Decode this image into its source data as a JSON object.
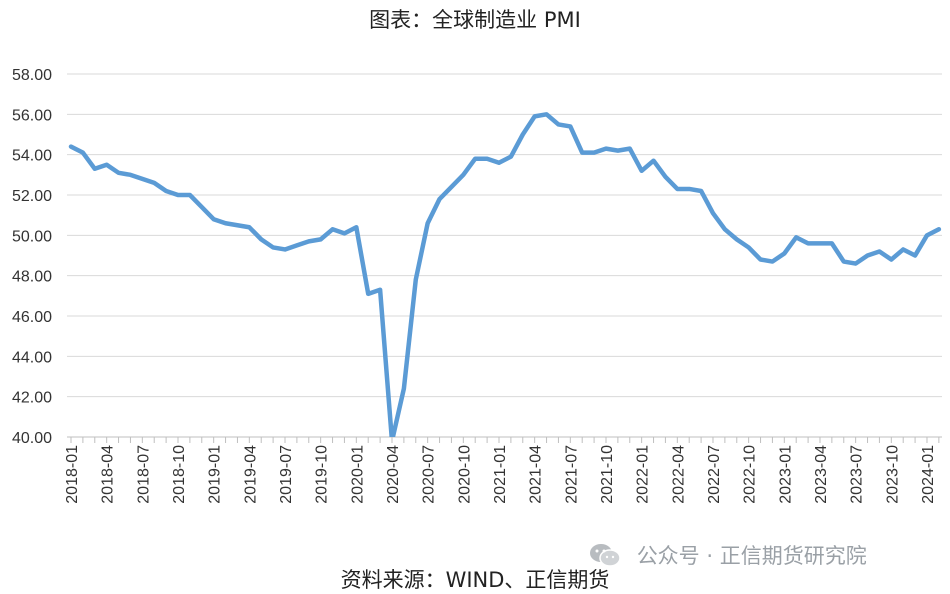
{
  "title": "图表：全球制造业 PMI",
  "source": "资料来源：WIND、正信期货",
  "watermark": {
    "text": "公众号 · 正信期货研究院",
    "icon": "wechat-icon"
  },
  "colors": {
    "line": "#5B9BD5",
    "grid": "#D9D9D9",
    "axis": "#BFBFBF"
  },
  "chart_data": {
    "type": "line",
    "title": "图表：全球制造业 PMI",
    "xlabel": "",
    "ylabel": "",
    "ylim": [
      40,
      58
    ],
    "grid": true,
    "y_ticks": [
      "40.00",
      "42.00",
      "44.00",
      "46.00",
      "48.00",
      "50.00",
      "52.00",
      "54.00",
      "56.00",
      "58.00"
    ],
    "x_tick_labels": [
      "2018-01",
      "2018-04",
      "2018-07",
      "2018-10",
      "2019-01",
      "2019-04",
      "2019-07",
      "2019-10",
      "2020-01",
      "2020-04",
      "2020-07",
      "2020-10",
      "2021-01",
      "2021-04",
      "2021-07",
      "2021-10",
      "2022-01",
      "2022-04",
      "2022-07",
      "2022-10",
      "2023-01",
      "2023-04",
      "2023-07",
      "2023-10",
      "2024-01"
    ],
    "x": [
      "2018-01",
      "2018-02",
      "2018-03",
      "2018-04",
      "2018-05",
      "2018-06",
      "2018-07",
      "2018-08",
      "2018-09",
      "2018-10",
      "2018-11",
      "2018-12",
      "2019-01",
      "2019-02",
      "2019-03",
      "2019-04",
      "2019-05",
      "2019-06",
      "2019-07",
      "2019-08",
      "2019-09",
      "2019-10",
      "2019-11",
      "2019-12",
      "2020-01",
      "2020-02",
      "2020-03",
      "2020-04",
      "2020-05",
      "2020-06",
      "2020-07",
      "2020-08",
      "2020-09",
      "2020-10",
      "2020-11",
      "2020-12",
      "2021-01",
      "2021-02",
      "2021-03",
      "2021-04",
      "2021-05",
      "2021-06",
      "2021-07",
      "2021-08",
      "2021-09",
      "2021-10",
      "2021-11",
      "2021-12",
      "2022-01",
      "2022-02",
      "2022-03",
      "2022-04",
      "2022-05",
      "2022-06",
      "2022-07",
      "2022-08",
      "2022-09",
      "2022-10",
      "2022-11",
      "2022-12",
      "2023-01",
      "2023-02",
      "2023-03",
      "2023-04",
      "2023-05",
      "2023-06",
      "2023-07",
      "2023-08",
      "2023-09",
      "2023-10",
      "2023-11",
      "2023-12",
      "2024-01",
      "2024-02"
    ],
    "series": [
      {
        "values": [
          54.4,
          54.1,
          53.3,
          53.5,
          53.1,
          53.0,
          52.8,
          52.6,
          52.2,
          52.0,
          52.0,
          51.4,
          50.8,
          50.6,
          50.5,
          50.4,
          49.8,
          49.4,
          49.3,
          49.5,
          49.7,
          49.8,
          50.3,
          50.1,
          50.4,
          47.1,
          47.3,
          39.8,
          42.4,
          47.8,
          50.6,
          51.8,
          52.4,
          53.0,
          53.8,
          53.8,
          53.6,
          53.9,
          55.0,
          55.9,
          56.0,
          55.5,
          55.4,
          54.1,
          54.1,
          54.3,
          54.2,
          54.3,
          53.2,
          53.7,
          52.9,
          52.3,
          52.3,
          52.2,
          51.1,
          50.3,
          49.8,
          49.4,
          48.8,
          48.7,
          49.1,
          49.9,
          49.6,
          49.6,
          49.6,
          48.7,
          48.6,
          49.0,
          49.2,
          48.8,
          49.3,
          49.0,
          50.0,
          50.3
        ]
      }
    ]
  }
}
